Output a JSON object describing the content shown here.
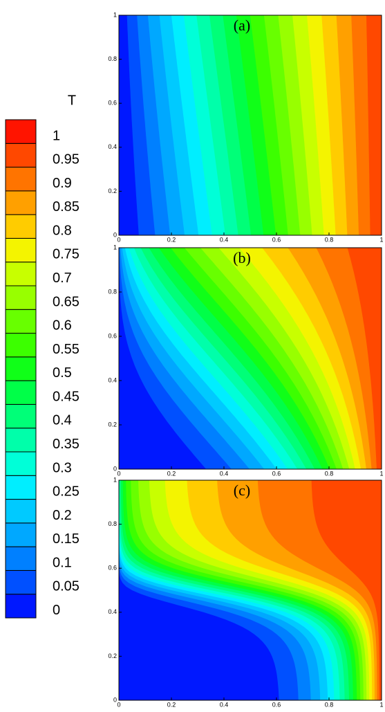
{
  "chart_data": [
    {
      "type": "contour",
      "label": "(a)",
      "xlim": [
        0,
        1
      ],
      "ylim": [
        0,
        1
      ],
      "xticks": [
        0,
        0.2,
        0.4,
        0.6,
        0.8,
        1
      ],
      "yticks": [
        0,
        0.2,
        0.4,
        0.6,
        0.8,
        1
      ]
    },
    {
      "type": "contour",
      "label": "(b)",
      "xlim": [
        0,
        1
      ],
      "ylim": [
        0,
        1
      ],
      "xticks": [
        0,
        0.2,
        0.4,
        0.6,
        0.8,
        1
      ],
      "yticks": [
        0,
        0.2,
        0.4,
        0.6,
        0.8,
        1
      ]
    },
    {
      "type": "contour",
      "label": "(c)",
      "xlim": [
        0,
        1
      ],
      "ylim": [
        0,
        1
      ],
      "xticks": [
        0,
        0.2,
        0.4,
        0.6,
        0.8,
        1
      ],
      "yticks": [
        0,
        0.2,
        0.4,
        0.6,
        0.8,
        1
      ]
    }
  ],
  "colorbar": {
    "title": "T",
    "levels": [
      0,
      0.05,
      0.1,
      0.15,
      0.2,
      0.25,
      0.3,
      0.35,
      0.4,
      0.45,
      0.5,
      0.55,
      0.6,
      0.65,
      0.7,
      0.75,
      0.8,
      0.85,
      0.9,
      0.95,
      1
    ],
    "colors": [
      "#0018ff",
      "#0050ff",
      "#0080ff",
      "#00a8ff",
      "#00caff",
      "#00eeff",
      "#00ffd8",
      "#00ffaa",
      "#00ff78",
      "#00ff48",
      "#10ff18",
      "#3cff00",
      "#68ff00",
      "#98ff00",
      "#c8ff00",
      "#f4f400",
      "#ffcc00",
      "#ffa000",
      "#ff7400",
      "#ff4800",
      "#ff1400"
    ]
  }
}
